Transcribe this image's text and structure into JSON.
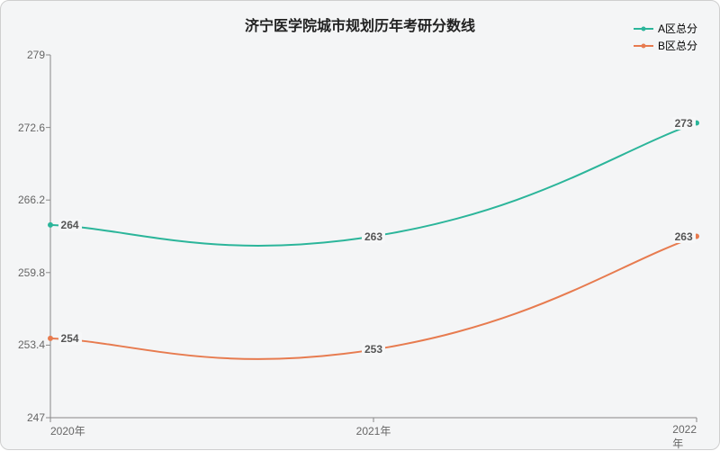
{
  "chart": {
    "type": "line",
    "title": "济宁医学院城市规划历年考研分数线",
    "title_fontsize": 16,
    "title_color": "#222222",
    "background_color": "#f4f5f6",
    "border_color": "#cfcfcf",
    "axis_color": "#888888",
    "tick_label_color": "#666666",
    "tick_fontsize": 12,
    "grid": false,
    "x": {
      "categories": [
        "2020年",
        "2021年",
        "2022年"
      ],
      "positions_pct": [
        0,
        50,
        100
      ]
    },
    "y": {
      "min": 247,
      "max": 279,
      "ticks": [
        247,
        253.4,
        259.8,
        266.2,
        272.6,
        279
      ],
      "tick_labels": [
        "247",
        "253.4",
        "259.8",
        "266.2",
        "272.6",
        "279"
      ]
    },
    "series": [
      {
        "name": "A区总分",
        "color": "#2bb59a",
        "line_width": 2,
        "smooth": true,
        "values": [
          264,
          263,
          273
        ],
        "labels": [
          "264",
          "263",
          "273"
        ]
      },
      {
        "name": "B区总分",
        "color": "#e77b4f",
        "line_width": 2,
        "smooth": true,
        "values": [
          254,
          253,
          263
        ],
        "labels": [
          "254",
          "253",
          "263"
        ]
      }
    ],
    "data_label_bg": "#f6f7f8",
    "data_label_color": "#555555",
    "data_label_fontsize": 12,
    "legend": {
      "position": "top-right",
      "fontsize": 12
    }
  }
}
